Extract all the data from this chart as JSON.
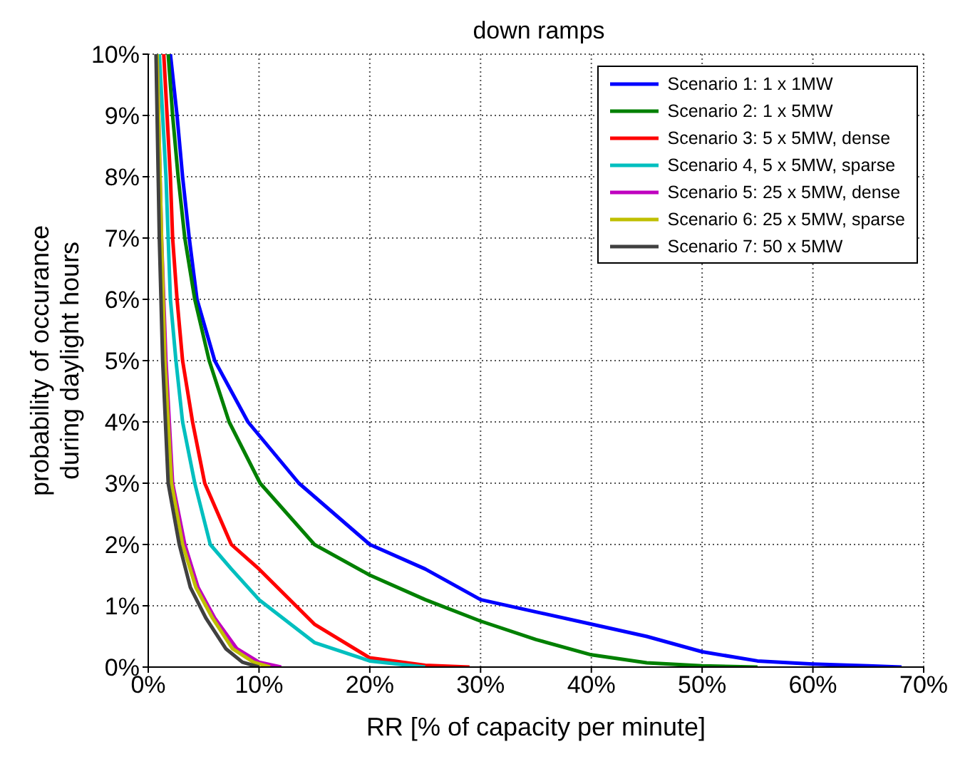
{
  "chart_data": {
    "type": "line",
    "title": "down ramps",
    "xlabel": "RR [% of capacity per minute]",
    "ylabel": "probability of occurance\nduring daylight hours",
    "xlim": [
      0,
      70
    ],
    "ylim": [
      0,
      10
    ],
    "xticks": [
      {
        "value": 0,
        "label": "0%"
      },
      {
        "value": 10,
        "label": "10%"
      },
      {
        "value": 20,
        "label": "20%"
      },
      {
        "value": 30,
        "label": "30%"
      },
      {
        "value": 40,
        "label": "40%"
      },
      {
        "value": 50,
        "label": "50%"
      },
      {
        "value": 60,
        "label": "60%"
      },
      {
        "value": 70,
        "label": "70%"
      }
    ],
    "yticks": [
      {
        "value": 0,
        "label": "0%"
      },
      {
        "value": 1,
        "label": "1%"
      },
      {
        "value": 2,
        "label": "2%"
      },
      {
        "value": 3,
        "label": "3%"
      },
      {
        "value": 4,
        "label": "4%"
      },
      {
        "value": 5,
        "label": "5%"
      },
      {
        "value": 6,
        "label": "6%"
      },
      {
        "value": 7,
        "label": "7%"
      },
      {
        "value": 8,
        "label": "8%"
      },
      {
        "value": 9,
        "label": "9%"
      },
      {
        "value": 10,
        "label": "10%"
      }
    ],
    "grid": true,
    "legend": "top right",
    "marker": "none",
    "line_style": "solid",
    "series": [
      {
        "name": "Scenario 1: 1 x 1MW",
        "color": "#0000ff",
        "x": [
          2.0,
          2.6,
          3.1,
          3.7,
          4.4,
          6.0,
          9.0,
          13.6,
          20,
          25,
          30,
          35,
          40,
          45,
          50,
          55,
          60,
          65,
          68
        ],
        "values": [
          10,
          9,
          8,
          7,
          6,
          5,
          4,
          3,
          2,
          1.6,
          1.1,
          0.9,
          0.7,
          0.5,
          0.25,
          0.1,
          0.05,
          0.02,
          0
        ]
      },
      {
        "name": "Scenario 2: 1 x 5MW",
        "color": "#008000",
        "x": [
          1.8,
          2.2,
          2.7,
          3.3,
          4.2,
          5.5,
          7.3,
          10.1,
          15,
          20,
          25,
          30,
          35,
          40,
          45,
          50,
          55
        ],
        "values": [
          10,
          9,
          8,
          7,
          6,
          5,
          4,
          3,
          2,
          1.5,
          1.1,
          0.75,
          0.45,
          0.2,
          0.07,
          0.02,
          0
        ]
      },
      {
        "name": "Scenario 3: 5 x 5MW, dense",
        "color": "#ff0000",
        "x": [
          1.4,
          1.7,
          2.0,
          2.2,
          2.6,
          3.1,
          4.0,
          5.1,
          7.5,
          10,
          15,
          20,
          25,
          29
        ],
        "values": [
          10,
          9,
          8,
          7,
          6,
          5,
          4,
          3,
          2,
          1.6,
          0.7,
          0.15,
          0.03,
          0
        ]
      },
      {
        "name": "Scenario 4, 5 x 5MW, sparse",
        "color": "#00bfbf",
        "x": [
          1.0,
          1.6,
          2.0,
          2.5,
          3.1,
          4.2,
          5.6,
          7.5,
          10,
          15,
          20,
          25
        ],
        "values": [
          10,
          8,
          6,
          5,
          4,
          3,
          2,
          1.6,
          1.1,
          0.4,
          0.1,
          0
        ]
      },
      {
        "name": "Scenario 5: 25 x 5MW, dense",
        "color": "#bf00bf",
        "x": [
          0.8,
          1.2,
          1.6,
          2.2,
          3.3,
          4.5,
          6,
          8,
          10,
          12
        ],
        "values": [
          10,
          7,
          5,
          3,
          2,
          1.3,
          0.8,
          0.3,
          0.08,
          0
        ]
      },
      {
        "name": "Scenario 6: 25 x 5MW, sparse",
        "color": "#bfbf00",
        "x": [
          0.8,
          1.2,
          1.5,
          2.1,
          3.1,
          4.3,
          5.8,
          7.6,
          9.5,
          11
        ],
        "values": [
          10,
          7,
          5,
          3,
          2,
          1.3,
          0.8,
          0.3,
          0.08,
          0
        ]
      },
      {
        "name": "Scenario 7: 50 x 5MW",
        "color": "#404040",
        "x": [
          0.7,
          1.0,
          1.3,
          1.8,
          2.8,
          3.8,
          5.2,
          7,
          8.5,
          10
        ],
        "values": [
          10,
          7,
          5,
          3,
          2,
          1.3,
          0.8,
          0.3,
          0.08,
          0
        ]
      }
    ]
  }
}
